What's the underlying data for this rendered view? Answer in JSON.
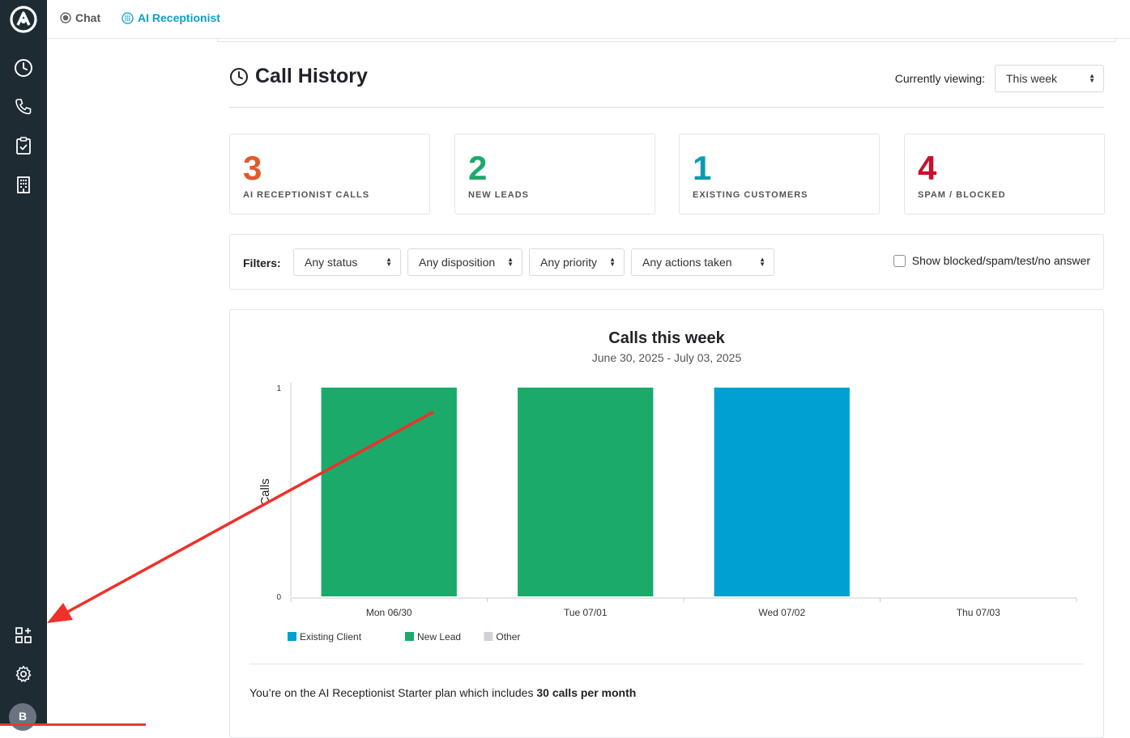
{
  "sidebar": {
    "logo": "logo-icon",
    "items": [
      {
        "name": "clock-icon"
      },
      {
        "name": "phone-icon"
      },
      {
        "name": "clipboard-check-icon"
      },
      {
        "name": "building-icon"
      }
    ],
    "bottom_items": [
      {
        "name": "apps-grid-icon"
      },
      {
        "name": "gear-icon"
      }
    ],
    "avatar_initial": "B"
  },
  "topbar": {
    "tabs": [
      {
        "label": "Chat",
        "icon": "chat-bubble-icon"
      },
      {
        "label": "AI Receptionist",
        "icon": "globe-grid-icon",
        "active": true
      }
    ]
  },
  "header": {
    "title": "Call History",
    "viewing_label": "Currently viewing:",
    "viewing_value": "This week"
  },
  "stats": [
    {
      "value": "3",
      "label": "AI RECEPTIONIST CALLS",
      "color": "#e05a2b"
    },
    {
      "value": "2",
      "label": "NEW LEADS",
      "color": "#1baa6a"
    },
    {
      "value": "1",
      "label": "EXISTING CUSTOMERS",
      "color": "#0b9bb5"
    },
    {
      "value": "4",
      "label": "SPAM / BLOCKED",
      "color": "#c8102e"
    }
  ],
  "filters": {
    "label": "Filters:",
    "selects": [
      "Any status",
      "Any disposition",
      "Any priority",
      "Any actions taken"
    ],
    "checkbox_label": "Show blocked/spam/test/no answer"
  },
  "chart": {
    "title": "Calls this week",
    "subtitle": "June 30, 2025 - July 03, 2025"
  },
  "chart_data": {
    "type": "bar",
    "title": "Calls this week",
    "subtitle": "June 30, 2025 - July 03, 2025",
    "categories": [
      "Mon 06/30",
      "Tue 07/01",
      "Wed 07/02",
      "Thu 07/03"
    ],
    "series": [
      {
        "name": "Existing Client",
        "color": "#00a0d2",
        "values": [
          0,
          0,
          1,
          0
        ]
      },
      {
        "name": "New Lead",
        "color": "#1baa6a",
        "values": [
          1,
          1,
          0,
          0
        ]
      },
      {
        "name": "Other",
        "color": "#d0d3d6",
        "values": [
          0,
          0,
          0,
          0
        ]
      }
    ],
    "stacked": true,
    "ylabel": "Calls",
    "xlabel": "",
    "ylim": [
      0,
      1
    ],
    "yticks": [
      "0",
      "1"
    ],
    "grid": false,
    "legend": "bottom-left"
  },
  "plan": {
    "prefix": "You’re on the AI Receptionist Starter plan which includes",
    "highlight": "30 calls per month"
  },
  "annotation": {
    "arrow_color": "#f0302a"
  }
}
